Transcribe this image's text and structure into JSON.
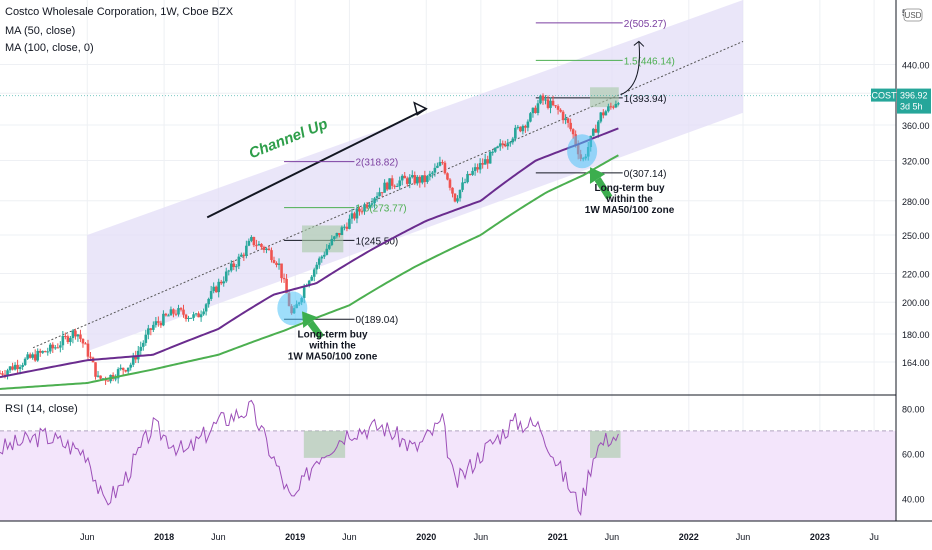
{
  "chart_data": {
    "type": "candlestick",
    "header": {
      "symbol_title": "Costco Wholesale Corporation, 1W, Cboe BZX",
      "indicators": [
        "MA (50, close)",
        "MA (100, close, 0)"
      ],
      "rsi_label": "RSI (14, close)"
    },
    "ticker": {
      "symbol": "COST",
      "last_price": "396.92",
      "countdown": "3d 5h"
    },
    "price_axis": {
      "scale": "log",
      "range": [
        148,
        545
      ],
      "ticks": [
        "164.00",
        "180.00",
        "200.00",
        "220.00",
        "250.00",
        "280.00",
        "320.00",
        "360.00",
        "400.00",
        "440.00",
        "5"
      ],
      "unit_label": "USD"
    },
    "rsi_axis": {
      "range": [
        30,
        85
      ],
      "ticks": [
        "40.00",
        "60.00",
        "80.00"
      ],
      "band": [
        30,
        70
      ]
    },
    "time_axis": {
      "start": "2016-10-01",
      "end": "2023-08-01",
      "ticks": [
        {
          "label": "Jun",
          "date": "2017-06-01"
        },
        {
          "label": "2018",
          "date": "2018-01-01"
        },
        {
          "label": "Jun",
          "date": "2018-06-01"
        },
        {
          "label": "2019",
          "date": "2019-01-01"
        },
        {
          "label": "Jun",
          "date": "2019-06-01"
        },
        {
          "label": "2020",
          "date": "2020-01-01"
        },
        {
          "label": "Jun",
          "date": "2020-06-01"
        },
        {
          "label": "2021",
          "date": "2021-01-01"
        },
        {
          "label": "Jun",
          "date": "2021-06-01"
        },
        {
          "label": "2022",
          "date": "2022-01-01"
        },
        {
          "label": "Jun",
          "date": "2022-06-01"
        },
        {
          "label": "2023",
          "date": "2023-01-01"
        },
        {
          "label": "Ju",
          "date": "2023-06-01"
        }
      ]
    },
    "price_path": [
      [
        "2016-10-01",
        158
      ],
      [
        "2016-12-01",
        164
      ],
      [
        "2017-03-01",
        172
      ],
      [
        "2017-05-01",
        182
      ],
      [
        "2017-06-01",
        170
      ],
      [
        "2017-07-01",
        155
      ],
      [
        "2017-08-01",
        156
      ],
      [
        "2017-10-01",
        163
      ],
      [
        "2017-12-01",
        185
      ],
      [
        "2018-02-01",
        194
      ],
      [
        "2018-04-01",
        190
      ],
      [
        "2018-06-01",
        212
      ],
      [
        "2018-08-01",
        232
      ],
      [
        "2018-09-01",
        245
      ],
      [
        "2018-10-15",
        238
      ],
      [
        "2018-11-15",
        228
      ],
      [
        "2018-12-24",
        190
      ],
      [
        "2019-02-01",
        214
      ],
      [
        "2019-04-01",
        240
      ],
      [
        "2019-06-01",
        262
      ],
      [
        "2019-08-01",
        282
      ],
      [
        "2019-09-15",
        296
      ],
      [
        "2019-11-01",
        300
      ],
      [
        "2020-01-01",
        300
      ],
      [
        "2020-02-15",
        318
      ],
      [
        "2020-03-20",
        282
      ],
      [
        "2020-05-01",
        305
      ],
      [
        "2020-07-01",
        325
      ],
      [
        "2020-09-01",
        350
      ],
      [
        "2020-10-15",
        368
      ],
      [
        "2020-11-15",
        392
      ],
      [
        "2020-12-10",
        385
      ],
      [
        "2021-01-10",
        375
      ],
      [
        "2021-02-10",
        352
      ],
      [
        "2021-03-10",
        318
      ],
      [
        "2021-04-01",
        340
      ],
      [
        "2021-05-01",
        372
      ],
      [
        "2021-06-01",
        383
      ],
      [
        "2021-06-25",
        396.92
      ]
    ],
    "ma50": [
      [
        "2016-10-01",
        156
      ],
      [
        "2017-06-01",
        165
      ],
      [
        "2017-12-01",
        168
      ],
      [
        "2018-06-01",
        183
      ],
      [
        "2018-11-01",
        205
      ],
      [
        "2019-03-01",
        213
      ],
      [
        "2019-08-01",
        238
      ],
      [
        "2020-01-01",
        262
      ],
      [
        "2020-06-01",
        280
      ],
      [
        "2020-11-01",
        320
      ],
      [
        "2021-03-01",
        338
      ],
      [
        "2021-06-25",
        357
      ]
    ],
    "ma100": [
      [
        "2016-10-01",
        150
      ],
      [
        "2017-06-01",
        153
      ],
      [
        "2017-12-01",
        160
      ],
      [
        "2018-06-01",
        168
      ],
      [
        "2018-12-01",
        182
      ],
      [
        "2019-06-01",
        198
      ],
      [
        "2019-12-01",
        225
      ],
      [
        "2020-06-01",
        250
      ],
      [
        "2020-12-01",
        288
      ],
      [
        "2021-03-15",
        305
      ],
      [
        "2021-06-25",
        327
      ]
    ],
    "rsi_path": [
      [
        "2016-10-01",
        62
      ],
      [
        "2017-02-01",
        68
      ],
      [
        "2017-06-01",
        60
      ],
      [
        "2017-07-15",
        38
      ],
      [
        "2017-09-01",
        45
      ],
      [
        "2017-12-01",
        72
      ],
      [
        "2018-03-01",
        60
      ],
      [
        "2018-06-01",
        74
      ],
      [
        "2018-09-01",
        80
      ],
      [
        "2018-11-01",
        58
      ],
      [
        "2018-12-24",
        38
      ],
      [
        "2019-03-01",
        58
      ],
      [
        "2019-06-01",
        70
      ],
      [
        "2019-09-01",
        72
      ],
      [
        "2019-12-01",
        62
      ],
      [
        "2020-02-15",
        74
      ],
      [
        "2020-03-20",
        46
      ],
      [
        "2020-06-01",
        60
      ],
      [
        "2020-09-01",
        74
      ],
      [
        "2020-11-15",
        72
      ],
      [
        "2021-01-01",
        55
      ],
      [
        "2021-03-05",
        36
      ],
      [
        "2021-04-15",
        62
      ],
      [
        "2021-06-01",
        68
      ],
      [
        "2021-06-25",
        66
      ]
    ],
    "channel_up": {
      "label": "Channel Up",
      "upper_start": [
        "2017-06-01",
        250
      ],
      "upper_end": [
        "2022-06-01",
        545
      ],
      "lower_start": [
        "2017-06-01",
        170
      ],
      "lower_end": [
        "2022-06-01",
        375
      ],
      "mid_start": [
        "2017-01-01",
        172
      ],
      "mid_end": [
        "2022-06-01",
        475
      ]
    },
    "fib_sets": [
      {
        "start": "2018-12-01",
        "end": "2019-06-15",
        "levels": [
          {
            "label": "0(189.04)",
            "price": 189.04,
            "color": "#131722"
          },
          {
            "label": "1(245.50)",
            "price": 245.5,
            "color": "#131722"
          },
          {
            "label": "1.5(273.77)",
            "price": 273.77,
            "color": "#4caf50"
          },
          {
            "label": "2(318.82)",
            "price": 318.82,
            "color": "#7b3fa0"
          }
        ]
      },
      {
        "start": "2020-11-01",
        "end": "2021-07-01",
        "levels": [
          {
            "label": "0(307.14)",
            "price": 307.14,
            "color": "#131722"
          },
          {
            "label": "1(393.94)",
            "price": 393.94,
            "color": "#131722"
          },
          {
            "label": "1.5(446.14)",
            "price": 446.14,
            "color": "#4caf50"
          },
          {
            "label": "2(505.27)",
            "price": 505.27,
            "color": "#7b3fa0"
          }
        ]
      }
    ],
    "annotations": [
      {
        "text": [
          "Long-term buy",
          "within the",
          "1W MA50/100 zone"
        ],
        "date": "2019-04-15",
        "price": 178
      },
      {
        "text": [
          "Long-term buy",
          "within the",
          "1W MA50/100 zone"
        ],
        "date": "2021-07-20",
        "price": 289
      }
    ],
    "colors": {
      "up": "#26a69a",
      "down": "#ef5350",
      "ma50": "#6a2c8e",
      "ma100": "#4caf50",
      "channel": "#e3def7",
      "rsi": "#9c4fb8",
      "rsi_band": "#f3e5fb",
      "accent": "#26a69a"
    }
  }
}
